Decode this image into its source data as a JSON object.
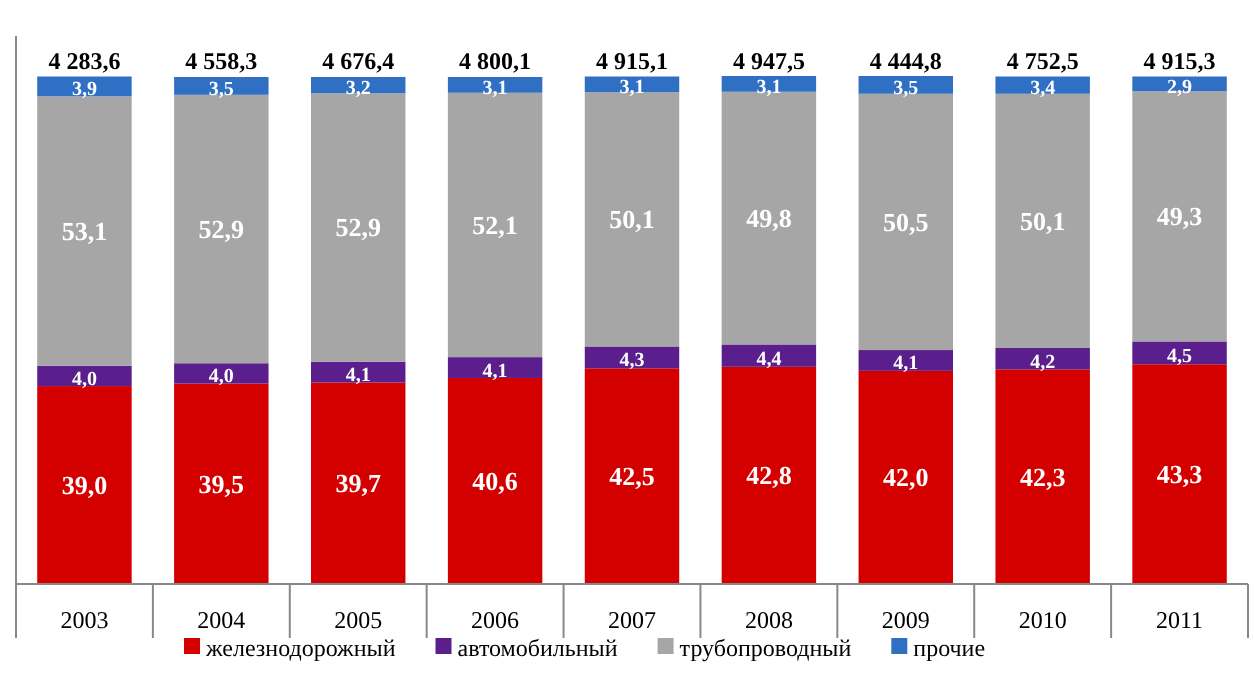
{
  "chart_data": {
    "type": "bar",
    "stacked": true,
    "legend": "bottom",
    "categories": [
      "2003",
      "2004",
      "2005",
      "2006",
      "2007",
      "2008",
      "2009",
      "2010",
      "2011"
    ],
    "series": [
      {
        "name": "железнодорожный",
        "color": "#d40000",
        "values": [
          39.0,
          39.5,
          39.7,
          40.6,
          42.5,
          42.8,
          42.0,
          42.3,
          43.3
        ],
        "value_labels": [
          "39,0",
          "39,5",
          "39,7",
          "40,6",
          "42,5",
          "42,8",
          "42,0",
          "42,3",
          "43,3"
        ]
      },
      {
        "name": "автомобильный",
        "color": "#5a1f8c",
        "values": [
          4.0,
          4.0,
          4.1,
          4.1,
          4.3,
          4.4,
          4.1,
          4.2,
          4.5
        ],
        "value_labels": [
          "4,0",
          "4,0",
          "4,1",
          "4,1",
          "4,3",
          "4,4",
          "4,1",
          "4,2",
          "4,5"
        ]
      },
      {
        "name": "трубопроводный",
        "color": "#a6a6a6",
        "values": [
          53.1,
          52.9,
          52.9,
          52.1,
          50.1,
          49.8,
          50.5,
          50.1,
          49.3
        ],
        "value_labels": [
          "53,1",
          "52,9",
          "52,9",
          "52,1",
          "50,1",
          "49,8",
          "50,5",
          "50,1",
          "49,3"
        ]
      },
      {
        "name": "прочие",
        "color": "#2f6fc4",
        "values": [
          3.9,
          3.5,
          3.2,
          3.1,
          3.1,
          3.1,
          3.5,
          3.4,
          2.9
        ],
        "value_labels": [
          "3,9",
          "3,5",
          "3,2",
          "3,1",
          "3,1",
          "3,1",
          "3,5",
          "3,4",
          "2,9"
        ]
      }
    ],
    "annotations": [
      {
        "text": "4 283,6",
        "x": "2003",
        "y": 100
      },
      {
        "text": "4 558,3",
        "x": "2004",
        "y": 100
      },
      {
        "text": "4 676,4",
        "x": "2005",
        "y": 100
      },
      {
        "text": "4 800,1",
        "x": "2006",
        "y": 100
      },
      {
        "text": "4 915,1",
        "x": "2007",
        "y": 100
      },
      {
        "text": "4 947,5",
        "x": "2008",
        "y": 100
      },
      {
        "text": "4 444,8",
        "x": "2009",
        "y": 100
      },
      {
        "text": "4 752,5",
        "x": "2010",
        "y": 100
      },
      {
        "text": "4 915,3",
        "x": "2011",
        "y": 100
      }
    ]
  }
}
